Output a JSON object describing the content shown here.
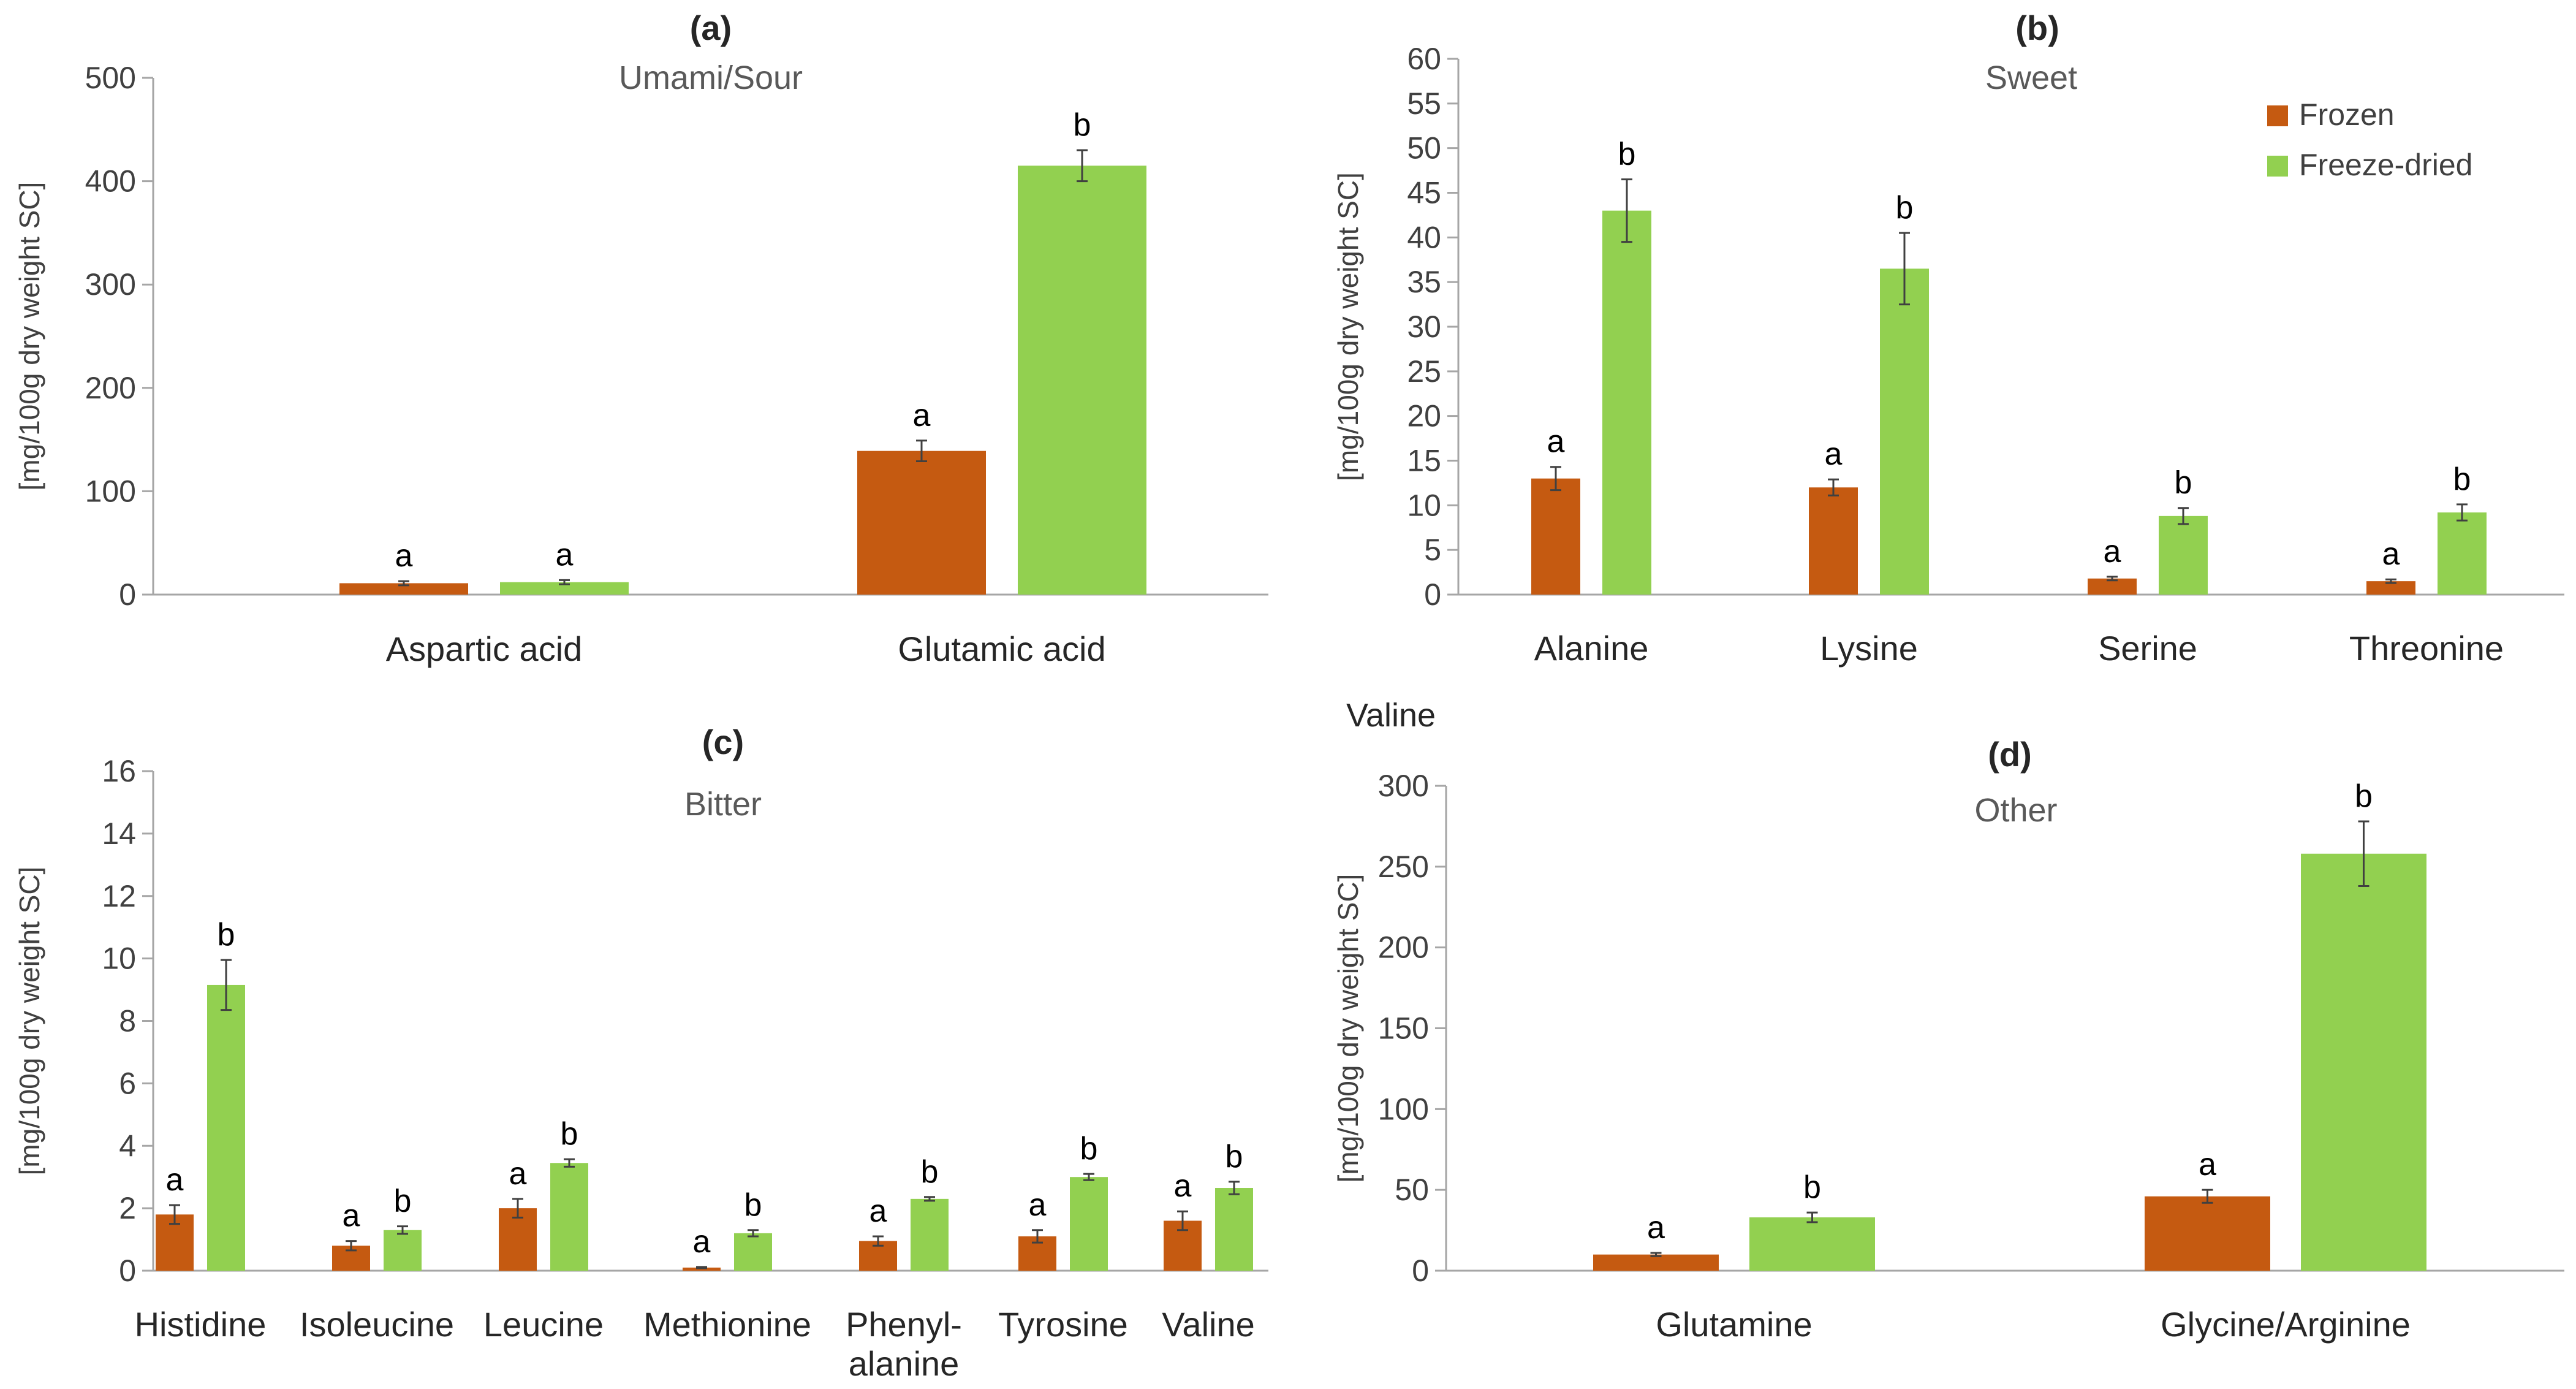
{
  "colors": {
    "frozen": "#c55a11",
    "freeze_dried": "#92d050",
    "axis": "#a6a6a6",
    "error": "#404040"
  },
  "legend": {
    "frozen": "Frozen",
    "freeze_dried": "Freeze-dried",
    "placement": "top-right of panel (b)"
  },
  "stray_label": "Valine",
  "chart_data": [
    {
      "panel": "(a)",
      "type": "bar",
      "title": "Umami/Sour",
      "ylabel": "[mg/100g dry weight SC]",
      "ylim": [
        0,
        500
      ],
      "yticks": [
        0,
        100,
        200,
        300,
        400,
        500
      ],
      "categories": [
        "Aspartic acid",
        "Glutamic acid"
      ],
      "series": [
        {
          "name": "Frozen",
          "values": [
            11,
            139
          ],
          "errors": [
            2,
            10
          ],
          "letters": [
            "a",
            "a"
          ]
        },
        {
          "name": "Freeze-dried",
          "values": [
            12,
            415
          ],
          "errors": [
            2,
            15
          ],
          "letters": [
            "a",
            "b"
          ]
        }
      ]
    },
    {
      "panel": "(b)",
      "type": "bar",
      "title": "Sweet",
      "ylabel": "[mg/100g dry weight SC]",
      "ylim": [
        0,
        60
      ],
      "yticks": [
        0,
        5,
        10,
        15,
        20,
        25,
        30,
        35,
        40,
        45,
        50,
        55,
        60
      ],
      "categories": [
        "Alanine",
        "Lysine",
        "Serine",
        "Threonine"
      ],
      "series": [
        {
          "name": "Frozen",
          "values": [
            13,
            12,
            1.8,
            1.5
          ],
          "errors": [
            1.3,
            0.9,
            0.2,
            0.2
          ],
          "letters": [
            "a",
            "a",
            "a",
            "a"
          ]
        },
        {
          "name": "Freeze-dried",
          "values": [
            43,
            36.5,
            8.8,
            9.2
          ],
          "errors": [
            3.5,
            4.0,
            0.9,
            0.9
          ],
          "letters": [
            "b",
            "b",
            "b",
            "b"
          ]
        }
      ]
    },
    {
      "panel": "(c)",
      "type": "bar",
      "title": "Bitter",
      "ylabel": "[mg/100g dry weight SC]",
      "ylim": [
        0,
        16
      ],
      "yticks": [
        0,
        2,
        4,
        6,
        8,
        10,
        12,
        14,
        16
      ],
      "categories": [
        "Histidine",
        "Isoleucine",
        "Leucine",
        "Methionine",
        "Phenyl-\nalanine",
        "Tyrosine",
        "Valine"
      ],
      "series": [
        {
          "name": "Frozen",
          "values": [
            1.8,
            0.8,
            2.0,
            0.1,
            0.95,
            1.1,
            1.6
          ],
          "errors": [
            0.3,
            0.15,
            0.3,
            0.02,
            0.15,
            0.2,
            0.3
          ],
          "letters": [
            "a",
            "a",
            "a",
            "a",
            "a",
            "a",
            "a"
          ]
        },
        {
          "name": "Freeze-dried",
          "values": [
            9.15,
            1.3,
            3.45,
            1.2,
            2.3,
            3.0,
            2.65
          ],
          "errors": [
            0.8,
            0.12,
            0.12,
            0.1,
            0.06,
            0.1,
            0.2
          ],
          "letters": [
            "b",
            "b",
            "b",
            "b",
            "b",
            "b",
            "b"
          ]
        }
      ]
    },
    {
      "panel": "(d)",
      "type": "bar",
      "title": "Other",
      "ylabel": "[mg/100g dry weight SC]",
      "ylim": [
        0,
        300
      ],
      "yticks": [
        0,
        50,
        100,
        150,
        200,
        250,
        300
      ],
      "categories": [
        "Glutamine",
        "Glycine/Arginine"
      ],
      "series": [
        {
          "name": "Frozen",
          "values": [
            10,
            46
          ],
          "errors": [
            1,
            4
          ],
          "letters": [
            "a",
            "a"
          ]
        },
        {
          "name": "Freeze-dried",
          "values": [
            33,
            258
          ],
          "errors": [
            3,
            20
          ],
          "letters": [
            "b",
            "b"
          ]
        }
      ]
    }
  ]
}
